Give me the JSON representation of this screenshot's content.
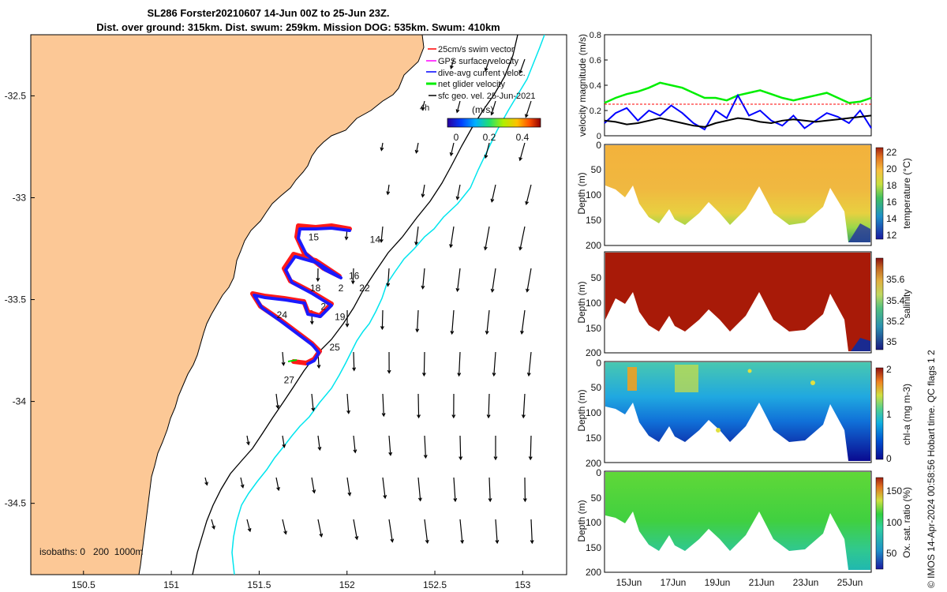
{
  "title_line1": "SL286 Forster20210607 14-Jun 00Z to 25-Jun 23Z.",
  "title_line2": "Dist. over ground: 315km. Dist. swum: 259km. Mission DOG: 535km. Swum: 410km",
  "colors": {
    "land": "#fcc896",
    "swim_vector": "#ff0000",
    "gps_surface": "#ff00ff",
    "dive_avg": "#0000ff",
    "net_glider": "#00ee00",
    "sfc_geo": "#000000",
    "isobath_200": "#000000",
    "isobath_1000": "#00e5ee",
    "track_red": "#ff1a1a",
    "track_blue": "#1a1aff"
  },
  "chart_data": [
    {
      "type": "scatter",
      "name": "map",
      "x_ticks": [
        "150.5",
        "151",
        "151.5",
        "152",
        "152.5",
        "153"
      ],
      "y_ticks": [
        "-32.5",
        "-33",
        "-33.5",
        "-34",
        "-34.5"
      ],
      "xlim": [
        150.2,
        153.25
      ],
      "ylim": [
        -34.85,
        -32.2
      ],
      "legend": {
        "placement": "top-right",
        "entries": [
          "25cm/s swim vector",
          "GPS surface velocity",
          "dive-avg current veloc.",
          "net glider velocity",
          "sfc geo. vel. 25-Jun-2021"
        ]
      },
      "legend_4h_label": "4h",
      "colorbar": {
        "unit_label": "(m/s)",
        "ticks": [
          "0",
          "0.2",
          "0.4"
        ],
        "range": [
          0,
          0.5
        ]
      },
      "isobath_label": "isobaths: 0   200  1000m",
      "day_labels": [
        {
          "label": "14",
          "lon": 152.13,
          "lat": -33.22
        },
        {
          "label": "15",
          "lon": 151.78,
          "lat": -33.21
        },
        {
          "label": "16",
          "lon": 152.01,
          "lat": -33.4
        },
        {
          "label": "18",
          "lon": 151.79,
          "lat": -33.46
        },
        {
          "label": "22",
          "lon": 152.07,
          "lat": -33.46
        },
        {
          "label": "2",
          "lon": 151.95,
          "lat": -33.46
        },
        {
          "label": "2",
          "lon": 151.85,
          "lat": -33.55
        },
        {
          "label": "19",
          "lon": 151.93,
          "lat": -33.6
        },
        {
          "label": "24",
          "lon": 151.6,
          "lat": -33.59
        },
        {
          "label": "25",
          "lon": 151.9,
          "lat": -33.75
        },
        {
          "label": "27",
          "lon": 151.64,
          "lat": -33.91
        }
      ]
    },
    {
      "type": "line",
      "name": "velocity",
      "ylabel": "velocity magnitude (m/s)",
      "ylim": [
        0,
        0.8
      ],
      "y_ticks": [
        "0",
        "0.2",
        "0.4",
        "0.6",
        "0.8"
      ],
      "xlim": [
        14.0,
        26.0
      ],
      "series": [
        {
          "color": "#00ee00",
          "x": [
            14.0,
            14.5,
            15.0,
            15.5,
            16.0,
            16.5,
            17.0,
            17.5,
            18.0,
            18.5,
            19.0,
            19.5,
            20.0,
            20.5,
            21.0,
            21.5,
            22.0,
            22.5,
            23.0,
            23.5,
            24.0,
            24.5,
            25.0,
            25.5,
            26.0
          ],
          "values": [
            0.26,
            0.3,
            0.33,
            0.35,
            0.38,
            0.42,
            0.4,
            0.38,
            0.34,
            0.3,
            0.3,
            0.28,
            0.32,
            0.34,
            0.36,
            0.33,
            0.3,
            0.28,
            0.3,
            0.32,
            0.34,
            0.3,
            0.26,
            0.27,
            0.3
          ]
        },
        {
          "color": "#0000ff",
          "x": [
            14.0,
            14.5,
            15.0,
            15.5,
            16.0,
            16.5,
            17.0,
            17.5,
            18.0,
            18.5,
            19.0,
            19.5,
            20.0,
            20.5,
            21.0,
            21.5,
            22.0,
            22.5,
            23.0,
            23.5,
            24.0,
            24.5,
            25.0,
            25.5,
            26.0
          ],
          "values": [
            0.1,
            0.18,
            0.22,
            0.12,
            0.2,
            0.16,
            0.24,
            0.18,
            0.1,
            0.05,
            0.2,
            0.14,
            0.32,
            0.16,
            0.2,
            0.12,
            0.08,
            0.16,
            0.06,
            0.12,
            0.18,
            0.15,
            0.1,
            0.2,
            0.06
          ]
        },
        {
          "color": "#000000",
          "x": [
            14.0,
            14.5,
            15.0,
            15.5,
            16.0,
            16.5,
            17.0,
            17.5,
            18.0,
            18.5,
            19.0,
            19.5,
            20.0,
            20.5,
            21.0,
            21.5,
            22.0,
            22.5,
            23.0,
            23.5,
            24.0,
            24.5,
            25.0,
            25.5,
            26.0
          ],
          "values": [
            0.12,
            0.11,
            0.09,
            0.1,
            0.12,
            0.14,
            0.12,
            0.1,
            0.08,
            0.07,
            0.1,
            0.12,
            0.14,
            0.13,
            0.11,
            0.1,
            0.12,
            0.13,
            0.12,
            0.11,
            0.12,
            0.13,
            0.14,
            0.15,
            0.16
          ]
        },
        {
          "color": "#ff0000",
          "x": [
            14.0,
            26.0
          ],
          "values": [
            0.25,
            0.25
          ]
        }
      ]
    },
    {
      "type": "heatmap",
      "name": "temperature",
      "ylabel": "Depth (m)",
      "colorbar_label": "temperature (°C)",
      "colorbar_ticks": [
        "22",
        "20",
        "18",
        "16",
        "14",
        "12"
      ],
      "depth_ticks": [
        "0",
        "50",
        "100",
        "150",
        "200"
      ],
      "dominant_value_degC": 20
    },
    {
      "type": "heatmap",
      "name": "salinity",
      "ylabel": "Depth (m)",
      "colorbar_label": "salinity",
      "colorbar_ticks": [
        "35.6",
        "35.4",
        "35.2",
        "35"
      ],
      "depth_ticks": [
        "50",
        "100",
        "150",
        "200"
      ],
      "dominant_value": 35.6
    },
    {
      "type": "heatmap",
      "name": "chl-a",
      "ylabel": "Depth (m)",
      "colorbar_label": "chl-a (mg m-3)",
      "colorbar_ticks": [
        "2",
        "1",
        "0"
      ],
      "depth_ticks": [
        "0",
        "50",
        "100",
        "150",
        "200"
      ]
    },
    {
      "type": "heatmap",
      "name": "oxygen",
      "ylabel": "Depth (m)",
      "colorbar_label": "Ox. sat. ratio (%)",
      "colorbar_ticks": [
        "150",
        "100",
        "50"
      ],
      "depth_ticks": [
        "0",
        "50",
        "100",
        "150",
        "200"
      ],
      "time_ticks": [
        "15Jun",
        "17Jun",
        "19Jun",
        "21Jun",
        "23Jun",
        "25Jun"
      ]
    }
  ],
  "sidebar_note": "© IMOS 14-Apr-2024 00:58:56 Hobart time. QC flags 1  2"
}
